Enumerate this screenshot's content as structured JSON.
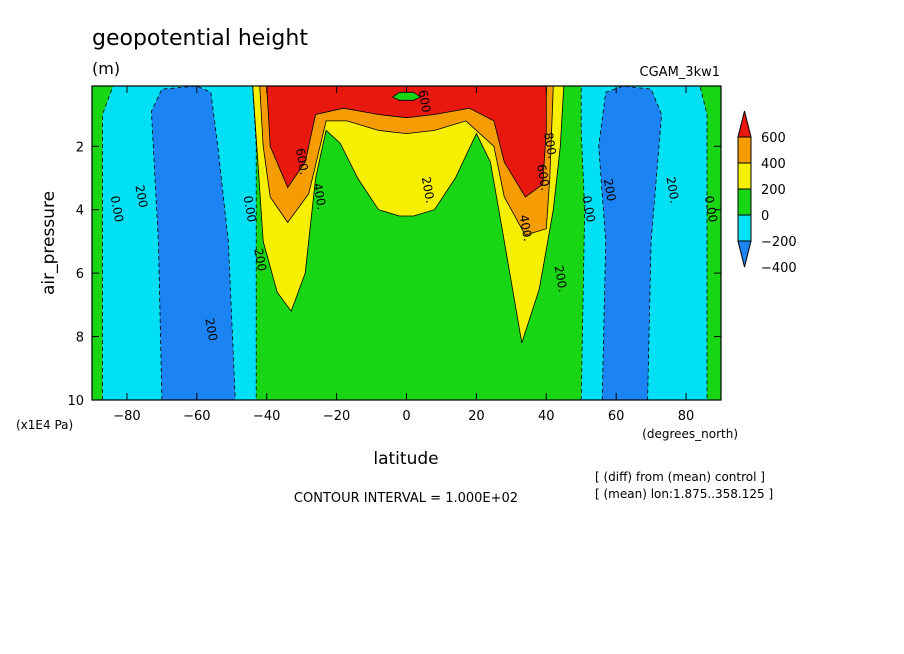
{
  "header": {
    "title": "geopotential height",
    "units": "(m)",
    "dataset": "CGAM_3kw1"
  },
  "footer": {
    "contour_interval": "CONTOUR INTERVAL = 1.000E+02",
    "note_diff": "[ (diff) from (mean) control ]",
    "note_mean": "[ (mean) lon:1.875..358.125 ]"
  },
  "chart_data": {
    "type": "heatmap",
    "xlabel": "latitude",
    "xunits": "(degrees_north)",
    "ylabel": "air_pressure",
    "yunits": "(x1E4 Pa)",
    "xlim": [
      -90,
      90
    ],
    "ylim": [
      10,
      0.1
    ],
    "x_ticks": [
      -80,
      -60,
      -40,
      -20,
      0,
      20,
      40,
      60,
      80
    ],
    "y_ticks": [
      2,
      4,
      6,
      8,
      10
    ],
    "colorbar": {
      "labels": [
        600,
        400,
        200,
        0,
        -200,
        -400
      ],
      "colors": [
        "#e8180f",
        "#f59d00",
        "#f7ef00",
        "#18d613",
        "#00e0f5",
        "#1c84f2"
      ]
    },
    "regions": [
      {
        "name": "sh-minus",
        "color": "#00e0f5",
        "points": [
          [
            -87,
            10
          ],
          [
            -87,
            1
          ],
          [
            -84,
            0.1
          ],
          [
            -44,
            0.1
          ],
          [
            -43,
            2
          ],
          [
            -43,
            10
          ]
        ]
      },
      {
        "name": "sh-minus-200",
        "color": "#1c84f2",
        "points": [
          [
            -70,
            10
          ],
          [
            -71,
            5
          ],
          [
            -73,
            0.9
          ],
          [
            -70,
            0.2
          ],
          [
            -60,
            0.1
          ],
          [
            -56,
            0.3
          ],
          [
            -54,
            2
          ],
          [
            -51,
            5
          ],
          [
            -49,
            10
          ]
        ]
      },
      {
        "name": "nh-minus",
        "color": "#00e0f5",
        "points": [
          [
            50,
            10
          ],
          [
            51,
            4
          ],
          [
            50,
            1.5
          ],
          [
            50,
            0.1
          ],
          [
            84,
            0.1
          ],
          [
            86,
            1
          ],
          [
            86,
            10
          ]
        ]
      },
      {
        "name": "nh-minus-200",
        "color": "#1c84f2",
        "points": [
          [
            56,
            10
          ],
          [
            57,
            5
          ],
          [
            55,
            2
          ],
          [
            57,
            0.3
          ],
          [
            62,
            0.1
          ],
          [
            70,
            0.2
          ],
          [
            73,
            1
          ],
          [
            70,
            5
          ],
          [
            69,
            10
          ]
        ]
      },
      {
        "name": "plus-200",
        "color": "#f7ef00",
        "points": [
          [
            -44,
            0.1
          ],
          [
            -41,
            5
          ],
          [
            -37,
            6.6
          ],
          [
            -33,
            7.2
          ],
          [
            -29,
            6
          ],
          [
            -26,
            3
          ],
          [
            -23,
            1.5
          ],
          [
            -19,
            1.9
          ],
          [
            -14,
            3
          ],
          [
            -8,
            4
          ],
          [
            -2,
            4.2
          ],
          [
            2,
            4.2
          ],
          [
            8,
            4
          ],
          [
            14,
            3
          ],
          [
            20,
            1.6
          ],
          [
            24,
            2.5
          ],
          [
            28,
            5
          ],
          [
            33,
            8.2
          ],
          [
            38,
            6.5
          ],
          [
            42,
            4
          ],
          [
            44,
            2
          ],
          [
            45,
            0.1
          ]
        ]
      },
      {
        "name": "plus-400",
        "color": "#f59d00",
        "points": [
          [
            -42,
            0.1
          ],
          [
            -41,
            2
          ],
          [
            -39,
            3.6
          ],
          [
            -34,
            4.4
          ],
          [
            -28,
            3.5
          ],
          [
            -23,
            1.2
          ],
          [
            -17,
            1.2
          ],
          [
            -8,
            1.5
          ],
          [
            0,
            1.6
          ],
          [
            8,
            1.5
          ],
          [
            17,
            1.2
          ],
          [
            25,
            2
          ],
          [
            28,
            3.6
          ],
          [
            34,
            4.8
          ],
          [
            40,
            4.6
          ],
          [
            41,
            3
          ],
          [
            42,
            0.1
          ]
        ]
      },
      {
        "name": "plus-600",
        "color": "#e8180f",
        "points": [
          [
            -40,
            0.1
          ],
          [
            -39,
            2
          ],
          [
            -34,
            3.3
          ],
          [
            -29,
            2.5
          ],
          [
            -26,
            1
          ],
          [
            -18,
            0.8
          ],
          [
            -8,
            1
          ],
          [
            0,
            1.1
          ],
          [
            8,
            1
          ],
          [
            18,
            0.8
          ],
          [
            25,
            1.2
          ],
          [
            28,
            2.5
          ],
          [
            34,
            3.6
          ],
          [
            39,
            3.2
          ],
          [
            40,
            1.5
          ],
          [
            40,
            0.1
          ]
        ]
      },
      {
        "name": "center-zero-pocket",
        "color": "#18d613",
        "points": [
          [
            -4,
            0.45
          ],
          [
            -2,
            0.3
          ],
          [
            2,
            0.3
          ],
          [
            4,
            0.45
          ],
          [
            2,
            0.55
          ],
          [
            -2,
            0.55
          ]
        ]
      }
    ],
    "contour_labels": [
      {
        "text": "0.00",
        "lat": -84,
        "p": 4.0
      },
      {
        "text": "200",
        "lat": -77,
        "p": 3.6
      },
      {
        "text": "0.00",
        "lat": -46,
        "p": 4.0
      },
      {
        "text": "200",
        "lat": -43,
        "p": 5.6
      },
      {
        "text": "200",
        "lat": -57,
        "p": 7.8
      },
      {
        "text": "400.",
        "lat": -26,
        "p": 3.6
      },
      {
        "text": "600.",
        "lat": -31,
        "p": 2.5
      },
      {
        "text": "200.",
        "lat": 5,
        "p": 3.4
      },
      {
        "text": "400.",
        "lat": 33,
        "p": 4.6
      },
      {
        "text": "600.",
        "lat": 38,
        "p": 3.0
      },
      {
        "text": "800.",
        "lat": 40,
        "p": 2.0
      },
      {
        "text": "200.",
        "lat": 43,
        "p": 6.2
      },
      {
        "text": "0.00",
        "lat": 51,
        "p": 4.0
      },
      {
        "text": "200",
        "lat": 57,
        "p": 3.4
      },
      {
        "text": "200.",
        "lat": 75,
        "p": 3.4
      },
      {
        "text": "0.00",
        "lat": 86,
        "p": 4.0
      },
      {
        "text": "600",
        "lat": 4,
        "p": 0.6
      }
    ]
  }
}
